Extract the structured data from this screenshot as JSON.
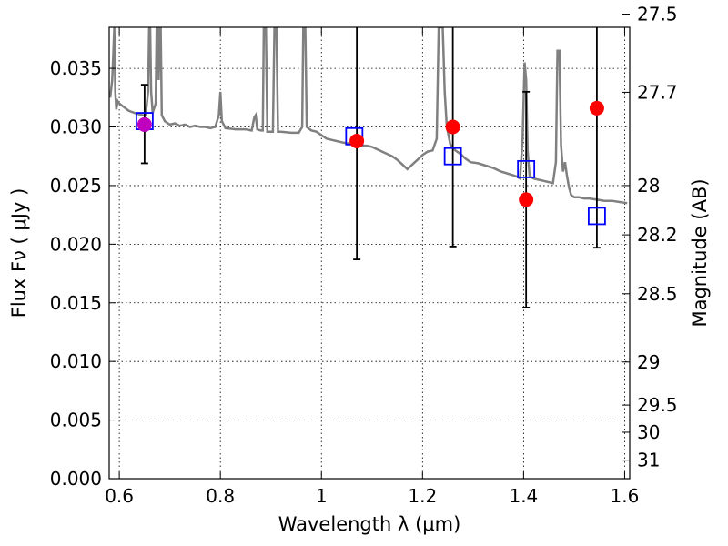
{
  "chart_data": {
    "type": "scatter",
    "xlabel": "Wavelength  λ (μm)",
    "ylabel": "Flux  Fν  ( μJy )",
    "ylabel_right": "Magnitude (AB)",
    "xlim": [
      0.58,
      1.61
    ],
    "ylim": [
      0.0,
      0.0385
    ],
    "grid": true,
    "x_ticks": [
      {
        "value": 0.6,
        "label": "0.6"
      },
      {
        "value": 0.8,
        "label": "0.8"
      },
      {
        "value": 1.0,
        "label": "1"
      },
      {
        "value": 1.2,
        "label": "1.2"
      },
      {
        "value": 1.4,
        "label": "1.4"
      },
      {
        "value": 1.6,
        "label": "1.6"
      }
    ],
    "y_ticks": [
      {
        "value": 0.0,
        "label": "0.000"
      },
      {
        "value": 0.005,
        "label": "0.005"
      },
      {
        "value": 0.01,
        "label": "0.010"
      },
      {
        "value": 0.015,
        "label": "0.015"
      },
      {
        "value": 0.02,
        "label": "0.020"
      },
      {
        "value": 0.025,
        "label": "0.025"
      },
      {
        "value": 0.03,
        "label": "0.030"
      },
      {
        "value": 0.035,
        "label": "0.035"
      }
    ],
    "mag_ticks": [
      {
        "value": 27.5,
        "label": "27.5"
      },
      {
        "value": 27.7,
        "label": "27.7"
      },
      {
        "value": 28.0,
        "label": "28"
      },
      {
        "value": 28.2,
        "label": "28.2"
      },
      {
        "value": 28.5,
        "label": "28.5"
      },
      {
        "value": 29.0,
        "label": "29"
      },
      {
        "value": 29.5,
        "label": "29.5"
      },
      {
        "value": 30.0,
        "label": "30"
      },
      {
        "value": 31.0,
        "label": "31"
      }
    ],
    "observed": {
      "color": "#ff0000",
      "points": [
        {
          "x": 0.65,
          "y": 0.0302,
          "yerr_low": 0.0269,
          "yerr_high": 0.0336
        },
        {
          "x": 1.07,
          "y": 0.0288,
          "yerr_low": 0.0187,
          "yerr_high": 0.0385
        },
        {
          "x": 1.26,
          "y": 0.03,
          "yerr_low": 0.0198,
          "yerr_high": 0.0385
        },
        {
          "x": 1.405,
          "y": 0.0238,
          "yerr_low": 0.0146,
          "yerr_high": 0.033
        },
        {
          "x": 1.545,
          "y": 0.0316,
          "yerr_low": 0.0197,
          "yerr_high": 0.0385
        }
      ]
    },
    "overlap_marker_color": "#bf00bf",
    "model_photometry": {
      "color": "#0000ff",
      "points": [
        {
          "x": 0.65,
          "y": 0.0305
        },
        {
          "x": 1.065,
          "y": 0.0292
        },
        {
          "x": 1.26,
          "y": 0.0275
        },
        {
          "x": 1.405,
          "y": 0.0264
        },
        {
          "x": 1.545,
          "y": 0.0224
        }
      ]
    },
    "spectrum": {
      "color": "#808080",
      "points": [
        [
          0.582,
          0.0325
        ],
        [
          0.586,
          0.034
        ],
        [
          0.588,
          0.036
        ],
        [
          0.59,
          0.0385
        ],
        [
          0.592,
          0.033
        ],
        [
          0.594,
          0.0315
        ],
        [
          0.597,
          0.0322
        ],
        [
          0.6,
          0.032
        ],
        [
          0.606,
          0.0318
        ],
        [
          0.612,
          0.0316
        ],
        [
          0.618,
          0.0314
        ],
        [
          0.624,
          0.0313
        ],
        [
          0.63,
          0.0312
        ],
        [
          0.638,
          0.0311
        ],
        [
          0.646,
          0.031
        ],
        [
          0.652,
          0.031
        ],
        [
          0.657,
          0.033
        ],
        [
          0.659,
          0.0385
        ],
        [
          0.661,
          0.0385
        ],
        [
          0.663,
          0.033
        ],
        [
          0.666,
          0.0312
        ],
        [
          0.672,
          0.032
        ],
        [
          0.674,
          0.0385
        ],
        [
          0.676,
          0.0385
        ],
        [
          0.678,
          0.034
        ],
        [
          0.68,
          0.0385
        ],
        [
          0.682,
          0.0385
        ],
        [
          0.684,
          0.031
        ],
        [
          0.69,
          0.0305
        ],
        [
          0.7,
          0.0302
        ],
        [
          0.71,
          0.0303
        ],
        [
          0.72,
          0.0301
        ],
        [
          0.73,
          0.0302
        ],
        [
          0.74,
          0.03
        ],
        [
          0.75,
          0.0301
        ],
        [
          0.76,
          0.03
        ],
        [
          0.77,
          0.03
        ],
        [
          0.78,
          0.0299
        ],
        [
          0.79,
          0.03
        ],
        [
          0.797,
          0.031
        ],
        [
          0.8,
          0.033
        ],
        [
          0.803,
          0.0305
        ],
        [
          0.81,
          0.0299
        ],
        [
          0.83,
          0.0298
        ],
        [
          0.85,
          0.0298
        ],
        [
          0.862,
          0.0297
        ],
        [
          0.867,
          0.0308
        ],
        [
          0.87,
          0.031
        ],
        [
          0.873,
          0.0298
        ],
        [
          0.88,
          0.0297
        ],
        [
          0.884,
          0.0297
        ],
        [
          0.886,
          0.0385
        ],
        [
          0.89,
          0.0385
        ],
        [
          0.893,
          0.0296
        ],
        [
          0.9,
          0.0296
        ],
        [
          0.904,
          0.0296
        ],
        [
          0.907,
          0.0385
        ],
        [
          0.911,
          0.0385
        ],
        [
          0.914,
          0.0296
        ],
        [
          0.92,
          0.0296
        ],
        [
          0.94,
          0.0295
        ],
        [
          0.955,
          0.0295
        ],
        [
          0.962,
          0.03
        ],
        [
          0.964,
          0.0385
        ],
        [
          0.968,
          0.0385
        ],
        [
          0.971,
          0.03
        ],
        [
          0.98,
          0.0297
        ],
        [
          0.99,
          0.0296
        ],
        [
          1.0,
          0.0293
        ],
        [
          1.01,
          0.029
        ],
        [
          1.02,
          0.0289
        ],
        [
          1.03,
          0.0288
        ],
        [
          1.04,
          0.0287
        ],
        [
          1.05,
          0.0286
        ],
        [
          1.06,
          0.0286
        ],
        [
          1.07,
          0.0285
        ],
        [
          1.08,
          0.0284
        ],
        [
          1.09,
          0.0284
        ],
        [
          1.1,
          0.0283
        ],
        [
          1.11,
          0.0281
        ],
        [
          1.12,
          0.0279
        ],
        [
          1.13,
          0.0277
        ],
        [
          1.14,
          0.0275
        ],
        [
          1.15,
          0.0272
        ],
        [
          1.16,
          0.0268
        ],
        [
          1.17,
          0.0264
        ],
        [
          1.18,
          0.0268
        ],
        [
          1.19,
          0.0272
        ],
        [
          1.2,
          0.0276
        ],
        [
          1.21,
          0.0279
        ],
        [
          1.22,
          0.028
        ],
        [
          1.228,
          0.029
        ],
        [
          1.232,
          0.0385
        ],
        [
          1.24,
          0.0385
        ],
        [
          1.244,
          0.033
        ],
        [
          1.248,
          0.03
        ],
        [
          1.255,
          0.0285
        ],
        [
          1.265,
          0.028
        ],
        [
          1.275,
          0.0277
        ],
        [
          1.285,
          0.0273
        ],
        [
          1.295,
          0.027
        ],
        [
          1.31,
          0.0269
        ],
        [
          1.325,
          0.0267
        ],
        [
          1.34,
          0.0265
        ],
        [
          1.355,
          0.0262
        ],
        [
          1.37,
          0.026
        ],
        [
          1.385,
          0.0258
        ],
        [
          1.393,
          0.0256
        ],
        [
          1.398,
          0.029
        ],
        [
          1.402,
          0.0355
        ],
        [
          1.405,
          0.034
        ],
        [
          1.408,
          0.028
        ],
        [
          1.412,
          0.0258
        ],
        [
          1.42,
          0.0256
        ],
        [
          1.43,
          0.0255
        ],
        [
          1.44,
          0.0254
        ],
        [
          1.45,
          0.0253
        ],
        [
          1.458,
          0.0252
        ],
        [
          1.464,
          0.027
        ],
        [
          1.467,
          0.0365
        ],
        [
          1.471,
          0.0365
        ],
        [
          1.474,
          0.0285
        ],
        [
          1.478,
          0.0262
        ],
        [
          1.482,
          0.027
        ],
        [
          1.486,
          0.0258
        ],
        [
          1.49,
          0.0248
        ],
        [
          1.494,
          0.0242
        ],
        [
          1.5,
          0.024
        ],
        [
          1.51,
          0.024
        ],
        [
          1.52,
          0.0239
        ],
        [
          1.53,
          0.0239
        ],
        [
          1.545,
          0.0238
        ],
        [
          1.56,
          0.0237
        ],
        [
          1.575,
          0.0237
        ],
        [
          1.59,
          0.0236
        ],
        [
          1.605,
          0.0235
        ]
      ]
    }
  }
}
